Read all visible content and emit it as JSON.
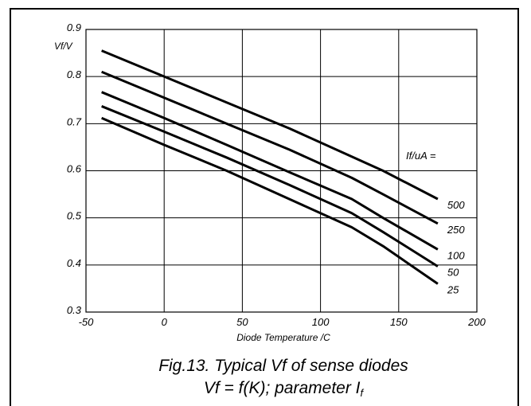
{
  "chart_data": {
    "type": "line",
    "xlabel": "Diode Temperature /C",
    "ylabel": "Vf/V",
    "xlim": [
      -50,
      200
    ],
    "ylim": [
      0.3,
      0.9
    ],
    "x_ticks": [
      "-50",
      "0",
      "50",
      "100",
      "150",
      "200"
    ],
    "y_ticks": [
      "0.3",
      "0.4",
      "0.5",
      "0.6",
      "0.7",
      "0.8",
      "0.9"
    ],
    "grid": true,
    "legend_title": "If/uA =",
    "series": [
      {
        "name": "500",
        "x": [
          -40,
          0,
          40,
          80,
          120,
          140,
          175
        ],
        "y": [
          0.855,
          0.8,
          0.745,
          0.69,
          0.63,
          0.6,
          0.54
        ]
      },
      {
        "name": "250",
        "x": [
          -40,
          0,
          40,
          80,
          120,
          140,
          175
        ],
        "y": [
          0.81,
          0.755,
          0.7,
          0.645,
          0.585,
          0.55,
          0.488
        ]
      },
      {
        "name": "100",
        "x": [
          -40,
          0,
          40,
          80,
          120,
          140,
          175
        ],
        "y": [
          0.767,
          0.712,
          0.655,
          0.597,
          0.54,
          0.5,
          0.433
        ]
      },
      {
        "name": "50",
        "x": [
          -40,
          0,
          40,
          80,
          120,
          140,
          175
        ],
        "y": [
          0.737,
          0.683,
          0.628,
          0.57,
          0.51,
          0.47,
          0.397
        ]
      },
      {
        "name": "25",
        "x": [
          -40,
          0,
          40,
          80,
          120,
          140,
          175
        ],
        "y": [
          0.712,
          0.655,
          0.6,
          0.54,
          0.48,
          0.44,
          0.36
        ]
      }
    ],
    "caption_line1": "Fig.13.   Typical Vf of sense diodes",
    "caption_line2_prefix": "Vf = f(K); parameter I",
    "caption_line2_sub": "f"
  }
}
